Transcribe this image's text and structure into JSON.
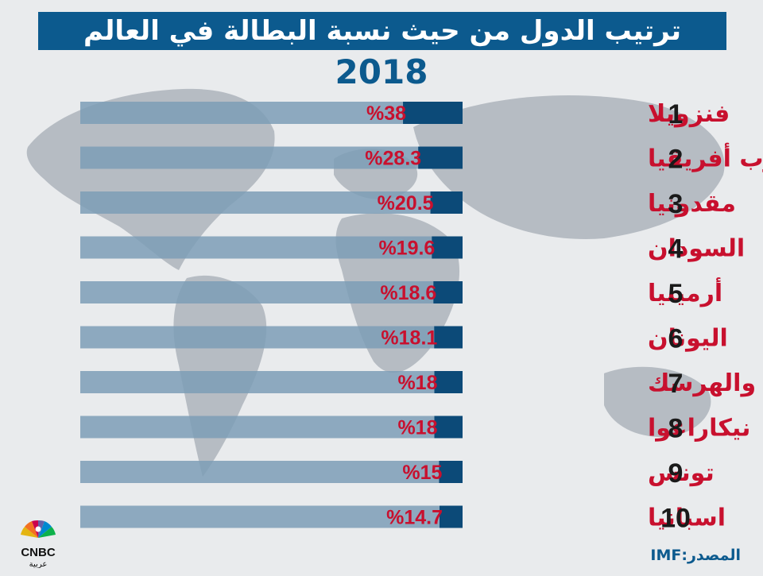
{
  "title": "ترتيب الدول من حيث نسبة البطالة في العالم",
  "subtitle": "2018",
  "logo": {
    "text": "CNBC",
    "subtext": "عربية"
  },
  "source": {
    "label": "المصدر:",
    "value": "IMF"
  },
  "colors": {
    "banner": "#0c5a8e",
    "bar_fill": "#0c4a78",
    "bar_track": "#7d9db6",
    "value_text": "#c8102e",
    "country_text": "#c8102e",
    "rank_text": "#1a1a1a",
    "map": "#b6bcc3"
  },
  "chart_data": {
    "type": "bar",
    "orientation": "horizontal",
    "xlim": [
      0,
      100
    ],
    "grid": false,
    "ranks": [
      "1",
      "2",
      "3",
      "4",
      "5",
      "6",
      "7",
      "8",
      "9",
      "10"
    ],
    "categories": [
      "فنزويلا",
      "جنوب أفريقيا",
      "مقدونيا",
      "السودان",
      "أرمينيا",
      "اليونان",
      "البوسنة والهرسك",
      "نيكاراغوا",
      "تونس",
      "اسبانيا"
    ],
    "values": [
      38,
      28.3,
      20.5,
      19.6,
      18.6,
      18.1,
      18,
      18,
      15,
      14.7
    ],
    "labels": [
      "%38",
      "%28.3",
      "%20.5",
      "%19.6",
      "%18.6",
      "%18.1",
      "%18",
      "%18",
      "%15",
      "%14.7"
    ]
  }
}
